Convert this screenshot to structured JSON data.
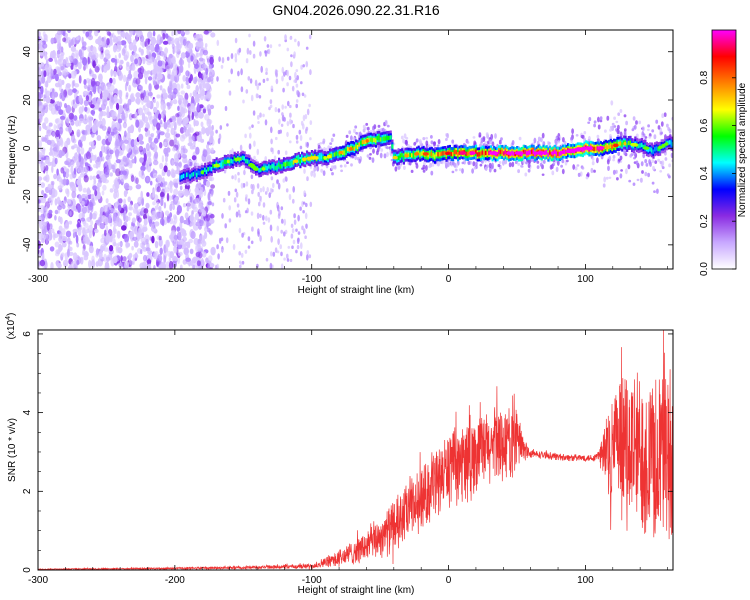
{
  "figure": {
    "title": "GN04.2026.090.22.31.R16"
  },
  "chart_data": [
    {
      "type": "heatmap",
      "xlabel": "Height of straight line (km)",
      "ylabel": "Frequency (Hz)",
      "xlim": [
        -300,
        164
      ],
      "ylim": [
        -50,
        49
      ],
      "xticks": [
        -300,
        -200,
        -100,
        0,
        100
      ],
      "yticks": [
        -40,
        -20,
        0,
        20,
        40
      ],
      "colorbar": {
        "label": "Normalized spectral amplitude",
        "range": [
          0,
          1
        ],
        "ticks": [
          "0.0",
          "0.2",
          "0.4",
          "0.6",
          "0.8"
        ],
        "colors": [
          "#ffffff",
          "#c8a8ff",
          "#8a2be2",
          "#0000ff",
          "#00ffff",
          "#00ff00",
          "#ffff00",
          "#ff8000",
          "#ff0000",
          "#ff00ff"
        ]
      },
      "ridge": {
        "x": [
          -195,
          -180,
          -165,
          -150,
          -140,
          -130,
          -120,
          -110,
          -100,
          -90,
          -80,
          -70,
          -60,
          -50,
          -42,
          -40,
          -30,
          -20,
          -10,
          0,
          10,
          20,
          30,
          40,
          50,
          60,
          70,
          80,
          90,
          100,
          110,
          120,
          130,
          140,
          150,
          160
        ],
        "freq": [
          -12,
          -10,
          -6,
          -4,
          -9,
          -8,
          -7,
          -5,
          -4,
          -4,
          -2,
          0,
          3,
          4,
          4,
          -4,
          -3,
          -2,
          -3,
          -2,
          -2,
          -2,
          -2,
          -2,
          -2,
          -2,
          -2,
          -2,
          -1,
          0,
          0,
          1,
          2,
          1,
          -1,
          2
        ],
        "amplitude": [
          0.4,
          0.45,
          0.5,
          0.45,
          0.45,
          0.5,
          0.55,
          0.55,
          0.55,
          0.5,
          0.6,
          0.65,
          0.65,
          0.6,
          0.5,
          0.55,
          0.6,
          0.65,
          0.75,
          0.75,
          0.8,
          0.85,
          0.85,
          0.9,
          0.95,
          0.95,
          0.95,
          0.95,
          0.9,
          0.95,
          0.85,
          0.75,
          0.55,
          0.45,
          0.45,
          0.45
        ]
      },
      "noise_band": {
        "x_from": -300,
        "x_to": -172,
        "level": 0.2
      }
    },
    {
      "type": "line",
      "xlabel": "Height of straight line (km)",
      "ylabel": "SNR (10 * v/v)",
      "scale_label": "(x10",
      "scale_exp": "4",
      "xlim": [
        -300,
        164
      ],
      "ylim": [
        0,
        6.1
      ],
      "xticks": [
        -300,
        -200,
        -100,
        0,
        100
      ],
      "yticks": [
        0,
        2,
        4,
        6
      ],
      "series": [
        {
          "color": "#ee3333",
          "x": [
            -300,
            -250,
            -200,
            -160,
            -120,
            -100,
            -90,
            -80,
            -70,
            -60,
            -50,
            -40,
            -30,
            -20,
            -10,
            0,
            10,
            20,
            30,
            40,
            50,
            55,
            60,
            70,
            80,
            90,
            100,
            105,
            110,
            115,
            120,
            130,
            140,
            150,
            160,
            164
          ],
          "center": [
            0.02,
            0.03,
            0.04,
            0.06,
            0.08,
            0.1,
            0.2,
            0.3,
            0.45,
            0.6,
            0.85,
            1.1,
            1.45,
            1.8,
            2.2,
            2.6,
            2.75,
            2.9,
            3.1,
            3.25,
            3.3,
            3.1,
            2.95,
            2.92,
            2.88,
            2.85,
            2.85,
            2.85,
            2.9,
            3.0,
            3.1,
            3.05,
            3.0,
            2.9,
            3.0,
            3.1
          ],
          "amp": [
            0.01,
            0.02,
            0.03,
            0.04,
            0.06,
            0.08,
            0.15,
            0.25,
            0.35,
            0.45,
            0.6,
            0.75,
            0.85,
            0.9,
            0.95,
            1.0,
            1.0,
            1.05,
            1.1,
            1.1,
            1.05,
            0.3,
            0.12,
            0.1,
            0.1,
            0.1,
            0.1,
            0.1,
            0.2,
            1.2,
            1.7,
            2.2,
            2.4,
            2.6,
            2.6,
            2.6
          ]
        }
      ]
    }
  ]
}
